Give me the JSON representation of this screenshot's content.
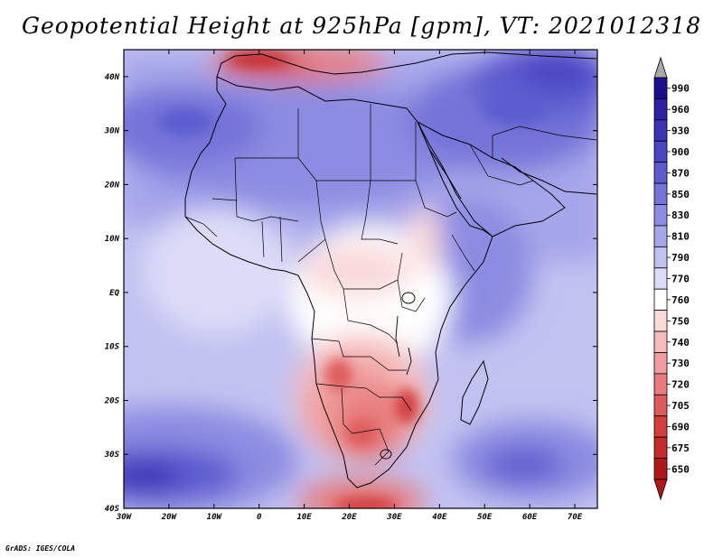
{
  "title": "Geopotential Height at 925hPa [gpm], VT: 2021012318",
  "credit": "GrADS: IGES/COLA",
  "map": {
    "variable": "Geopotential Height",
    "level": "925hPa",
    "units": "gpm",
    "valid_time": "2021012318",
    "lon_range": [
      -30,
      75
    ],
    "lat_range": [
      -40,
      45
    ],
    "lat_labels": [
      {
        "value": 40,
        "text": "40N"
      },
      {
        "value": 30,
        "text": "30N"
      },
      {
        "value": 20,
        "text": "20N"
      },
      {
        "value": 10,
        "text": "10N"
      },
      {
        "value": 0,
        "text": "EQ"
      },
      {
        "value": -10,
        "text": "10S"
      },
      {
        "value": -20,
        "text": "20S"
      },
      {
        "value": -30,
        "text": "30S"
      },
      {
        "value": -40,
        "text": "40S"
      }
    ],
    "lon_labels": [
      {
        "value": -30,
        "text": "30W"
      },
      {
        "value": -20,
        "text": "20W"
      },
      {
        "value": -10,
        "text": "10W"
      },
      {
        "value": 0,
        "text": "0"
      },
      {
        "value": 10,
        "text": "10E"
      },
      {
        "value": 20,
        "text": "20E"
      },
      {
        "value": 30,
        "text": "30E"
      },
      {
        "value": 40,
        "text": "40E"
      },
      {
        "value": 50,
        "text": "50E"
      },
      {
        "value": 60,
        "text": "60E"
      },
      {
        "value": 70,
        "text": "70E"
      }
    ]
  },
  "colorbar": {
    "levels": [
      {
        "label": "990",
        "color": "#1b0f8a"
      },
      {
        "label": "960",
        "color": "#2d22a3"
      },
      {
        "label": "930",
        "color": "#3a33b5"
      },
      {
        "label": "900",
        "color": "#4a45c2"
      },
      {
        "label": "870",
        "color": "#5d5ccf"
      },
      {
        "label": "850",
        "color": "#7474d9"
      },
      {
        "label": "830",
        "color": "#8c8ce2"
      },
      {
        "label": "810",
        "color": "#a6a6ea"
      },
      {
        "label": "790",
        "color": "#c2c2f1"
      },
      {
        "label": "770",
        "color": "#dcdcf8"
      },
      {
        "label": "760",
        "color": "#ffffff"
      },
      {
        "label": "750",
        "color": "#fbdada"
      },
      {
        "label": "740",
        "color": "#f6bcbc"
      },
      {
        "label": "730",
        "color": "#f09c9c"
      },
      {
        "label": "720",
        "color": "#e87c7c"
      },
      {
        "label": "705",
        "color": "#de5b5b"
      },
      {
        "label": "690",
        "color": "#d23f3f"
      },
      {
        "label": "675",
        "color": "#c52a2a"
      },
      {
        "label": "650",
        "color": "#b01818"
      }
    ],
    "top_arrow_color": "#a8a8a8",
    "bottom_arrow_color": "#b01818"
  }
}
